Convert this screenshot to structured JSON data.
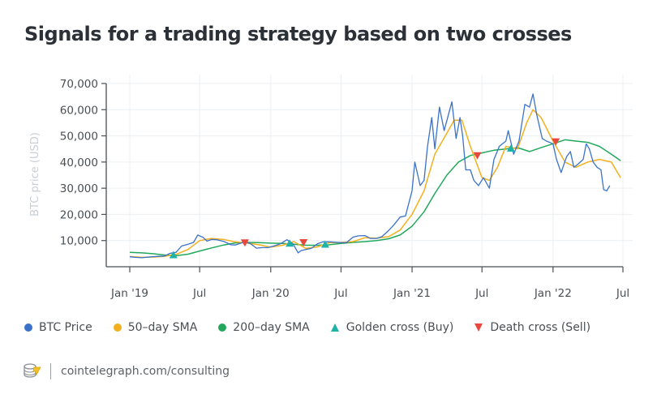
{
  "title": "Signals for a trading strategy based on two crosses",
  "footer": {
    "source": "cointelegraph.com/consulting",
    "logo": "cointelegraph-coin-stack-icon"
  },
  "colors": {
    "price": "#3a72c9",
    "sma50": "#f2b01e",
    "sma200": "#22a85c",
    "golden": "#1fb2a6",
    "death": "#e8483b",
    "axis": "#4a4f55",
    "grid": "#eceff2"
  },
  "chart_data": {
    "type": "line",
    "title": "Signals for a trading strategy based on two crosses",
    "xlabel": "",
    "ylabel": "BTC price (USD)",
    "ylim": [
      0,
      70000
    ],
    "xlim": [
      "2018-12-01",
      "2022-07-01"
    ],
    "grid": true,
    "legend_position": "bottom",
    "yticks": [
      10000,
      20000,
      30000,
      40000,
      50000,
      60000,
      70000
    ],
    "ytick_labels": [
      "10,000",
      "20,000",
      "30,000",
      "40,000",
      "50,000",
      "60,000",
      "70,000"
    ],
    "xticks": [
      "2019-01-01",
      "2019-07-01",
      "2020-01-01",
      "2020-07-01",
      "2021-01-01",
      "2021-07-01",
      "2022-01-01",
      "2022-07-01"
    ],
    "xtick_labels": [
      "Jan '19",
      "Jul",
      "Jan '20",
      "Jul",
      "Jan '21",
      "Jul",
      "Jan '22",
      "Jul"
    ],
    "legend": [
      {
        "name": "BTC Price",
        "marker": "dot",
        "color": "#3a72c9"
      },
      {
        "name": "50–day SMA",
        "marker": "dot",
        "color": "#f2b01e"
      },
      {
        "name": "200–day SMA",
        "marker": "dot",
        "color": "#22a85c"
      },
      {
        "name": "Golden cross (Buy)",
        "marker": "triangle-up",
        "color": "#1fb2a6"
      },
      {
        "name": "Death cross (Sell)",
        "marker": "triangle-down",
        "color": "#e8483b"
      }
    ],
    "series": [
      {
        "name": "BTC Price",
        "x": [
          "2019-01-01",
          "2019-01-15",
          "2019-02-01",
          "2019-02-15",
          "2019-03-01",
          "2019-03-15",
          "2019-04-01",
          "2019-04-15",
          "2019-05-01",
          "2019-05-15",
          "2019-06-01",
          "2019-06-15",
          "2019-06-26",
          "2019-07-10",
          "2019-07-20",
          "2019-08-01",
          "2019-08-15",
          "2019-09-01",
          "2019-09-20",
          "2019-10-01",
          "2019-10-26",
          "2019-11-10",
          "2019-11-25",
          "2019-12-10",
          "2019-12-25",
          "2020-01-10",
          "2020-01-25",
          "2020-02-12",
          "2020-02-28",
          "2020-03-12",
          "2020-03-20",
          "2020-04-01",
          "2020-04-15",
          "2020-05-01",
          "2020-05-15",
          "2020-06-01",
          "2020-06-15",
          "2020-07-01",
          "2020-07-15",
          "2020-08-01",
          "2020-08-15",
          "2020-09-01",
          "2020-09-15",
          "2020-10-01",
          "2020-10-15",
          "2020-11-01",
          "2020-11-15",
          "2020-12-01",
          "2020-12-15",
          "2021-01-01",
          "2021-01-08",
          "2021-01-22",
          "2021-02-01",
          "2021-02-10",
          "2021-02-21",
          "2021-03-01",
          "2021-03-13",
          "2021-03-25",
          "2021-04-05",
          "2021-04-14",
          "2021-04-25",
          "2021-05-05",
          "2021-05-12",
          "2021-05-20",
          "2021-06-01",
          "2021-06-10",
          "2021-06-22",
          "2021-07-05",
          "2021-07-20",
          "2021-08-01",
          "2021-08-15",
          "2021-09-01",
          "2021-09-07",
          "2021-09-21",
          "2021-10-05",
          "2021-10-20",
          "2021-11-01",
          "2021-11-10",
          "2021-11-20",
          "2021-12-04",
          "2021-12-15",
          "2022-01-01",
          "2022-01-10",
          "2022-01-22",
          "2022-02-05",
          "2022-02-15",
          "2022-02-24",
          "2022-03-05",
          "2022-03-20",
          "2022-03-28"
        ],
        "values": [
          3800,
          3600,
          3450,
          3650,
          3850,
          3950,
          4100,
          5100,
          5500,
          7900,
          8600,
          9300,
          12100,
          11200,
          9800,
          10400,
          10300,
          9700,
          8400,
          8300,
          9500,
          8800,
          7100,
          7300,
          7300,
          8000,
          8700,
          10300,
          8700,
          5300,
          6200,
          6600,
          7000,
          8800,
          9500,
          9500,
          9400,
          9200,
          9200,
          11300,
          11800,
          11900,
          10800,
          10800,
          11500,
          13800,
          16000,
          19000,
          19400,
          29000,
          40000,
          31000,
          33000,
          46000,
          57000,
          45000,
          61000,
          52000,
          58000,
          63000,
          49000,
          57000,
          50000,
          37000,
          37000,
          33000,
          31000,
          34000,
          30000,
          41000,
          46000,
          48000,
          52000,
          43000,
          48000,
          62000,
          61000,
          66000,
          58000,
          49000,
          48000,
          47000,
          41000,
          36000,
          42000,
          44000,
          38000,
          39000,
          41000,
          47000
        ],
        "color": "#3a72c9"
      },
      {
        "name": "BTC Price (tail)",
        "x": [
          "2022-03-28",
          "2022-04-05",
          "2022-04-15",
          "2022-04-25",
          "2022-05-05",
          "2022-05-12",
          "2022-05-20",
          "2022-05-28"
        ],
        "values": [
          47000,
          45000,
          40000,
          38000,
          37000,
          29500,
          29000,
          31000
        ],
        "color": "#3a72c9"
      },
      {
        "name": "50–day SMA",
        "x": [
          "2019-01-01",
          "2019-02-01",
          "2019-03-01",
          "2019-04-01",
          "2019-05-01",
          "2019-06-01",
          "2019-07-01",
          "2019-08-01",
          "2019-09-01",
          "2019-10-01",
          "2019-11-01",
          "2019-12-01",
          "2020-01-01",
          "2020-02-01",
          "2020-03-01",
          "2020-04-01",
          "2020-05-01",
          "2020-06-01",
          "2020-07-01",
          "2020-08-01",
          "2020-09-01",
          "2020-10-01",
          "2020-11-01",
          "2020-12-01",
          "2021-01-01",
          "2021-02-01",
          "2021-03-01",
          "2021-04-01",
          "2021-04-20",
          "2021-05-10",
          "2021-06-01",
          "2021-07-01",
          "2021-07-20",
          "2021-08-10",
          "2021-09-01",
          "2021-10-01",
          "2021-10-25",
          "2021-11-10",
          "2021-12-01",
          "2022-01-01",
          "2022-02-01",
          "2022-03-01",
          "2022-04-01",
          "2022-05-01",
          "2022-06-01",
          "2022-06-25"
        ],
        "values": [
          3900,
          3600,
          3700,
          4000,
          4700,
          6600,
          10000,
          10800,
          10400,
          9500,
          9000,
          8400,
          7500,
          8200,
          9600,
          7000,
          7600,
          9200,
          9300,
          9600,
          11100,
          10900,
          11500,
          14000,
          20000,
          29000,
          43000,
          51000,
          56000,
          56000,
          46000,
          34000,
          33000,
          38000,
          46000,
          45000,
          55000,
          60000,
          57000,
          48000,
          40000,
          38000,
          40000,
          41000,
          40000,
          34000
        ],
        "color": "#f2b01e"
      },
      {
        "name": "200–day SMA",
        "x": [
          "2019-01-01",
          "2019-02-01",
          "2019-03-01",
          "2019-04-01",
          "2019-05-01",
          "2019-06-01",
          "2019-07-01",
          "2019-08-01",
          "2019-09-01",
          "2019-10-01",
          "2019-11-01",
          "2019-12-01",
          "2020-01-01",
          "2020-02-01",
          "2020-03-01",
          "2020-04-01",
          "2020-05-01",
          "2020-06-01",
          "2020-07-01",
          "2020-08-01",
          "2020-09-01",
          "2020-10-01",
          "2020-11-01",
          "2020-12-01",
          "2021-01-01",
          "2021-02-01",
          "2021-03-01",
          "2021-04-01",
          "2021-05-01",
          "2021-06-01",
          "2021-07-01",
          "2021-08-01",
          "2021-09-01",
          "2021-10-01",
          "2021-11-01",
          "2021-12-01",
          "2022-01-01",
          "2022-02-01",
          "2022-03-01",
          "2022-04-01",
          "2022-05-01",
          "2022-06-01",
          "2022-06-25"
        ],
        "values": [
          5500,
          5300,
          5000,
          4500,
          4200,
          4800,
          6000,
          7200,
          8300,
          9100,
          9300,
          9200,
          9000,
          8900,
          8600,
          8200,
          8200,
          8400,
          8900,
          9300,
          9600,
          10000,
          10700,
          12100,
          15500,
          21000,
          28000,
          35000,
          40000,
          42500,
          43500,
          44500,
          45000,
          45500,
          44000,
          45500,
          47000,
          48500,
          48000,
          47500,
          46000,
          43000,
          40500
        ],
        "color": "#22a85c"
      }
    ],
    "signals": [
      {
        "type": "golden",
        "label": "Golden cross (Buy)",
        "date": "2019-04-24",
        "value": 4500
      },
      {
        "type": "death",
        "label": "Death cross (Sell)",
        "date": "2019-10-26",
        "value": 8900
      },
      {
        "type": "golden",
        "label": "Golden cross (Buy)",
        "date": "2020-02-19",
        "value": 8900
      },
      {
        "type": "death",
        "label": "Death cross (Sell)",
        "date": "2020-03-26",
        "value": 9000
      },
      {
        "type": "golden",
        "label": "Golden cross (Buy)",
        "date": "2020-05-21",
        "value": 8500
      },
      {
        "type": "death",
        "label": "Death cross (Sell)",
        "date": "2021-06-19",
        "value": 42200
      },
      {
        "type": "golden",
        "label": "Golden cross (Buy)",
        "date": "2021-09-14",
        "value": 45200
      },
      {
        "type": "death",
        "label": "Death cross (Sell)",
        "date": "2022-01-08",
        "value": 47500
      }
    ]
  }
}
